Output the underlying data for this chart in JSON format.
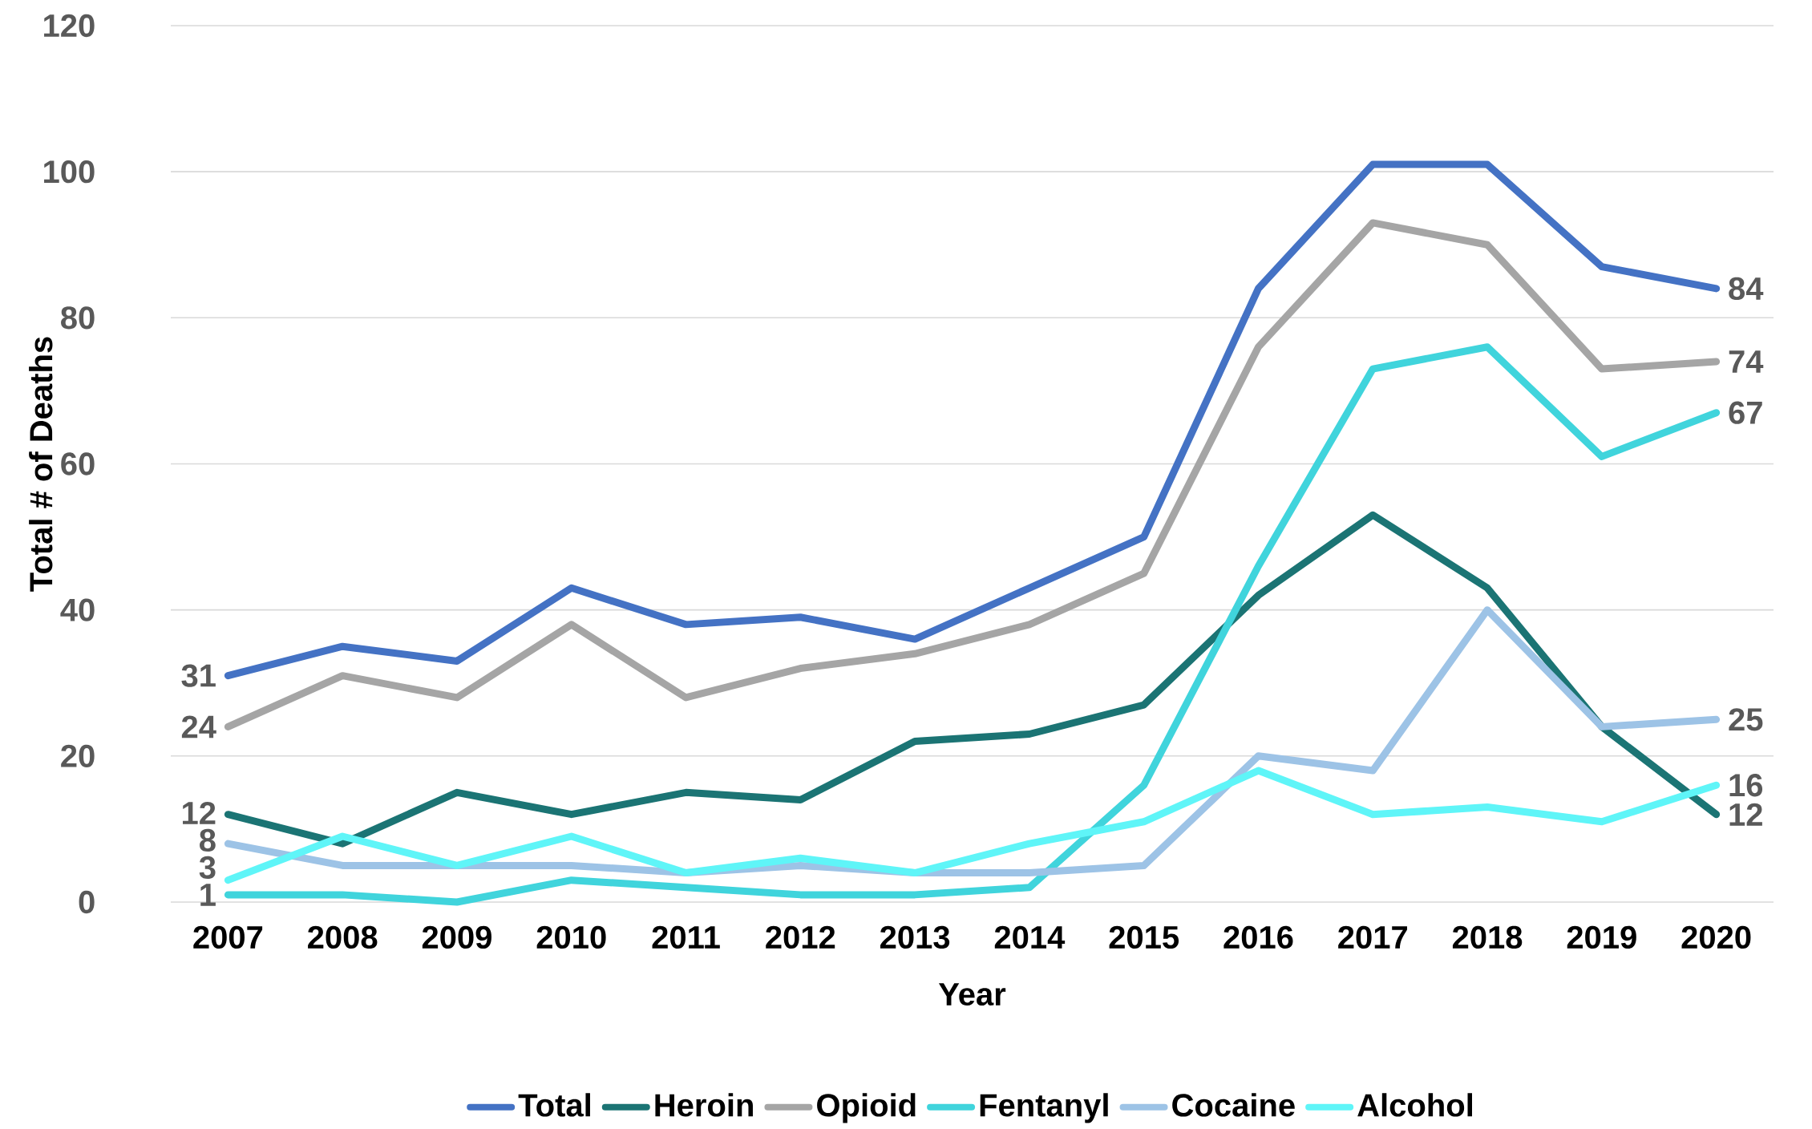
{
  "chart_data": {
    "type": "line",
    "xlabel": "Year",
    "ylabel": "Total # of Deaths",
    "categories": [
      "2007",
      "2008",
      "2009",
      "2010",
      "2011",
      "2012",
      "2013",
      "2014",
      "2015",
      "2016",
      "2017",
      "2018",
      "2019",
      "2020"
    ],
    "series": [
      {
        "name": "Total",
        "color": "#4472c4",
        "values": [
          31,
          35,
          33,
          43,
          38,
          39,
          36,
          43,
          50,
          84,
          101,
          101,
          87,
          84
        ],
        "value_labels": [
          "31",
          null,
          null,
          null,
          null,
          null,
          null,
          null,
          null,
          null,
          null,
          null,
          null,
          "84"
        ]
      },
      {
        "name": "Heroin",
        "color": "#1b7474",
        "values": [
          12,
          8,
          15,
          12,
          15,
          14,
          22,
          23,
          27,
          42,
          53,
          43,
          24,
          12
        ],
        "value_labels": [
          "12",
          null,
          null,
          null,
          null,
          null,
          null,
          null,
          null,
          null,
          null,
          null,
          null,
          "12"
        ]
      },
      {
        "name": "Opioid",
        "color": "#a5a5a5",
        "values": [
          24,
          31,
          28,
          38,
          28,
          32,
          34,
          38,
          45,
          76,
          93,
          90,
          73,
          74
        ],
        "value_labels": [
          "24",
          null,
          null,
          null,
          null,
          null,
          null,
          null,
          null,
          null,
          null,
          null,
          null,
          "74"
        ]
      },
      {
        "name": "Fentanyl",
        "color": "#40d4dc",
        "values": [
          1,
          1,
          0,
          3,
          2,
          1,
          1,
          2,
          16,
          46,
          73,
          76,
          61,
          67
        ],
        "value_labels": [
          "1",
          null,
          null,
          null,
          null,
          null,
          null,
          null,
          null,
          null,
          null,
          null,
          null,
          "67"
        ]
      },
      {
        "name": "Cocaine",
        "color": "#9dc3e6",
        "values": [
          8,
          5,
          5,
          5,
          4,
          5,
          4,
          4,
          5,
          20,
          18,
          40,
          24,
          25
        ],
        "value_labels": [
          "8",
          null,
          null,
          null,
          null,
          null,
          null,
          null,
          null,
          null,
          null,
          null,
          null,
          "25"
        ]
      },
      {
        "name": "Alcohol",
        "color": "#5ff5f8",
        "values": [
          3,
          9,
          5,
          9,
          4,
          6,
          4,
          8,
          11,
          18,
          12,
          13,
          11,
          16
        ],
        "value_labels": [
          "3",
          null,
          null,
          null,
          null,
          null,
          null,
          null,
          null,
          null,
          null,
          null,
          null,
          "16"
        ]
      }
    ],
    "ylim": [
      0,
      120
    ],
    "yticks": [
      0,
      20,
      40,
      60,
      80,
      100,
      120
    ],
    "grid": "y",
    "legend": "bottom",
    "marker": "none",
    "line_style": "solid"
  }
}
